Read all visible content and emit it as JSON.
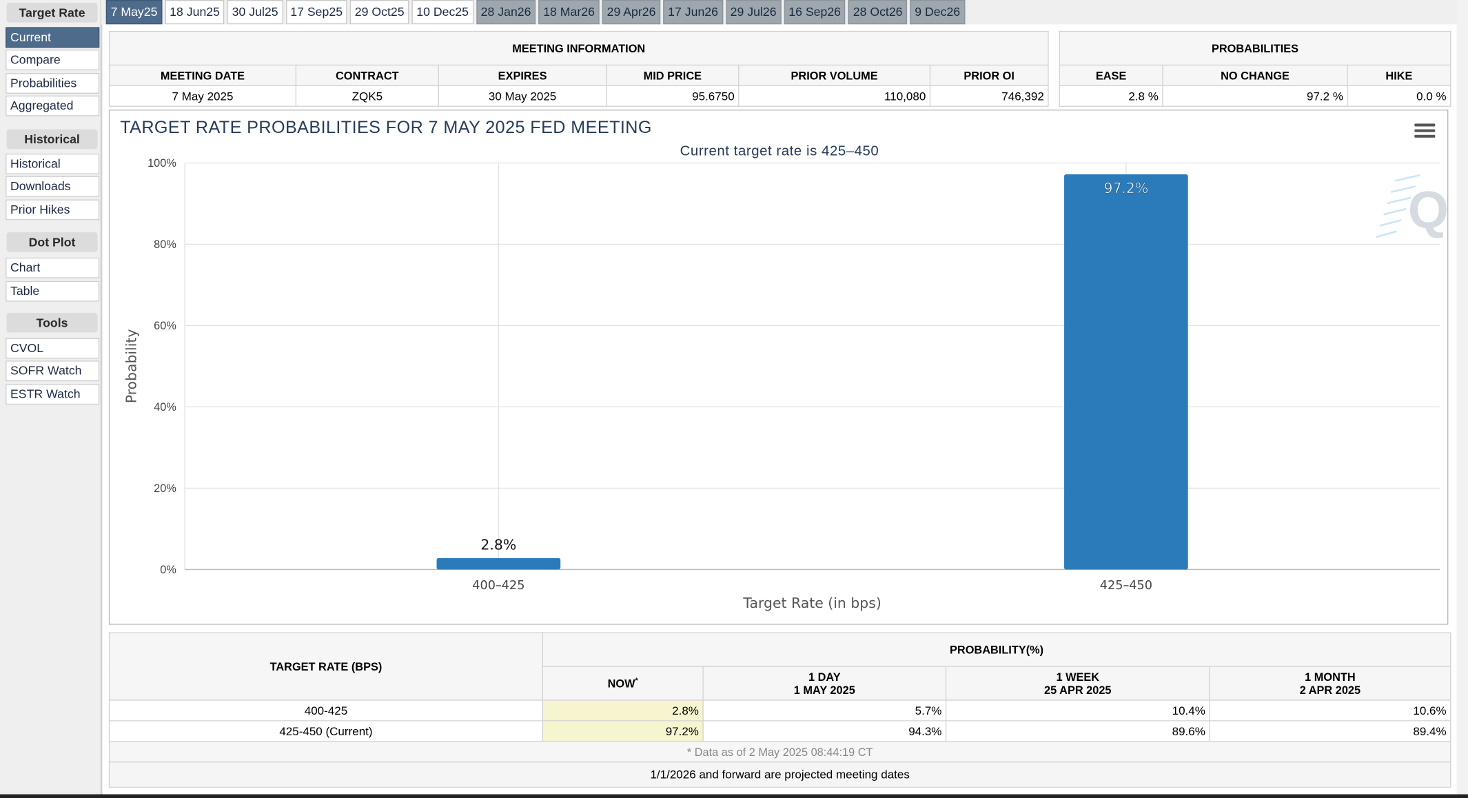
{
  "sidebar": {
    "sections": [
      {
        "title": "Target Rate",
        "items": [
          {
            "label": "Current",
            "active": true
          },
          {
            "label": "Compare"
          },
          {
            "label": "Probabilities"
          },
          {
            "label": "Aggregated"
          }
        ]
      },
      {
        "title": "Historical",
        "items": [
          {
            "label": "Historical"
          },
          {
            "label": "Downloads"
          },
          {
            "label": "Prior Hikes"
          }
        ]
      },
      {
        "title": "Dot Plot",
        "items": [
          {
            "label": "Chart"
          },
          {
            "label": "Table"
          }
        ]
      },
      {
        "title": "Tools",
        "items": [
          {
            "label": "CVOL"
          },
          {
            "label": "SOFR Watch"
          },
          {
            "label": "ESTR Watch"
          }
        ]
      }
    ]
  },
  "tabs": [
    {
      "label": "7 May25",
      "state": "active"
    },
    {
      "label": "18 Jun25",
      "state": "normal"
    },
    {
      "label": "30 Jul25",
      "state": "normal"
    },
    {
      "label": "17 Sep25",
      "state": "normal"
    },
    {
      "label": "29 Oct25",
      "state": "normal"
    },
    {
      "label": "10 Dec25",
      "state": "normal"
    },
    {
      "label": "28 Jan26",
      "state": "dim"
    },
    {
      "label": "18 Mar26",
      "state": "dim"
    },
    {
      "label": "29 Apr26",
      "state": "dim"
    },
    {
      "label": "17 Jun26",
      "state": "dim"
    },
    {
      "label": "29 Jul26",
      "state": "dim"
    },
    {
      "label": "16 Sep26",
      "state": "dim"
    },
    {
      "label": "28 Oct26",
      "state": "dim"
    },
    {
      "label": "9 Dec26",
      "state": "dim"
    }
  ],
  "meeting_info": {
    "title": "MEETING INFORMATION",
    "headers": [
      "MEETING DATE",
      "CONTRACT",
      "EXPIRES",
      "MID PRICE",
      "PRIOR VOLUME",
      "PRIOR OI"
    ],
    "values": [
      "7 May 2025",
      "ZQK5",
      "30 May 2025",
      "95.6750",
      "110,080",
      "746,392"
    ]
  },
  "probabilities": {
    "title": "PROBABILITIES",
    "headers": [
      "EASE",
      "NO CHANGE",
      "HIKE"
    ],
    "values": [
      "2.8 %",
      "97.2 %",
      "0.0 %"
    ]
  },
  "colors": {
    "bar": "#2b7bba",
    "title": "#273b5a",
    "active_tab": "#4e6b8c",
    "now_cell": "#f7f5cf"
  },
  "chart_data": {
    "type": "bar",
    "title": "TARGET RATE PROBABILITIES FOR 7 MAY 2025 FED MEETING",
    "subtitle": "Current target rate is 425–450",
    "xlabel": "Target Rate (in bps)",
    "ylabel": "Probability",
    "categories": [
      "400–425",
      "425–450"
    ],
    "values": [
      2.8,
      97.2
    ],
    "data_labels": [
      "2.8%",
      "97.2%"
    ],
    "ylim": [
      0,
      100
    ],
    "yticks": [
      "0%",
      "20%",
      "40%",
      "60%",
      "80%",
      "100%"
    ],
    "grid": true,
    "legend": "none"
  },
  "history": {
    "col_target": "TARGET RATE (BPS)",
    "col_prob": "PROBABILITY(%)",
    "subheaders": [
      {
        "line1": "NOW",
        "line2": "",
        "star": "*"
      },
      {
        "line1": "1 DAY",
        "line2": "1 MAY 2025"
      },
      {
        "line1": "1 WEEK",
        "line2": "25 APR 2025"
      },
      {
        "line1": "1 MONTH",
        "line2": "2 APR 2025"
      }
    ],
    "rows": [
      {
        "rate": "400-425",
        "values": [
          "2.8%",
          "5.7%",
          "10.4%",
          "10.6%"
        ]
      },
      {
        "rate": "425-450 (Current)",
        "values": [
          "97.2%",
          "94.3%",
          "89.6%",
          "89.4%"
        ]
      }
    ],
    "note": "* Data as of 2 May 2025 08:44:19 CT"
  },
  "footer": "1/1/2026 and forward are projected meeting dates"
}
